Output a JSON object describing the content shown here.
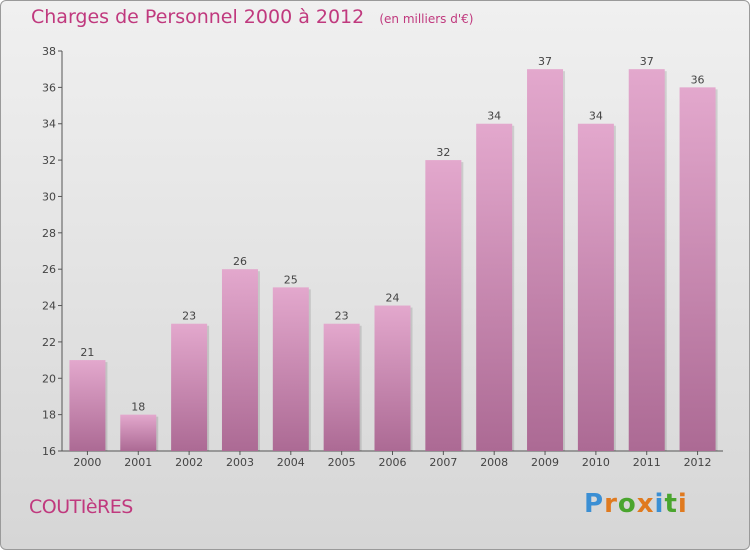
{
  "chart_data": {
    "type": "bar",
    "title": "Charges de Personnel 2000 à 2012",
    "subtitle": "(en milliers d'€)",
    "categories": [
      "2000",
      "2001",
      "2002",
      "2003",
      "2004",
      "2005",
      "2006",
      "2007",
      "2008",
      "2009",
      "2010",
      "2011",
      "2012"
    ],
    "values": [
      21,
      18,
      23,
      26,
      25,
      23,
      24,
      32,
      34,
      37,
      34,
      37,
      36
    ],
    "ylim": [
      16,
      38
    ],
    "yticks": [
      16,
      18,
      20,
      22,
      24,
      26,
      28,
      30,
      32,
      34,
      36,
      38
    ],
    "xlabel": "",
    "ylabel": "",
    "grid": false,
    "bar_color_top": "#e3a8cd",
    "bar_color_bottom": "#ac6a94"
  },
  "commune": "COUTIèRES",
  "logo": {
    "text": "Proxiti",
    "letters": [
      {
        "ch": "P",
        "color": "#3b8fd4"
      },
      {
        "ch": "r",
        "color": "#e07a1f"
      },
      {
        "ch": "o",
        "color": "#4aa52e"
      },
      {
        "ch": "x",
        "color": "#e07a1f"
      },
      {
        "ch": "i",
        "color": "#3b8fd4"
      },
      {
        "ch": "t",
        "color": "#4aa52e"
      },
      {
        "ch": "i",
        "color": "#e07a1f"
      }
    ]
  }
}
